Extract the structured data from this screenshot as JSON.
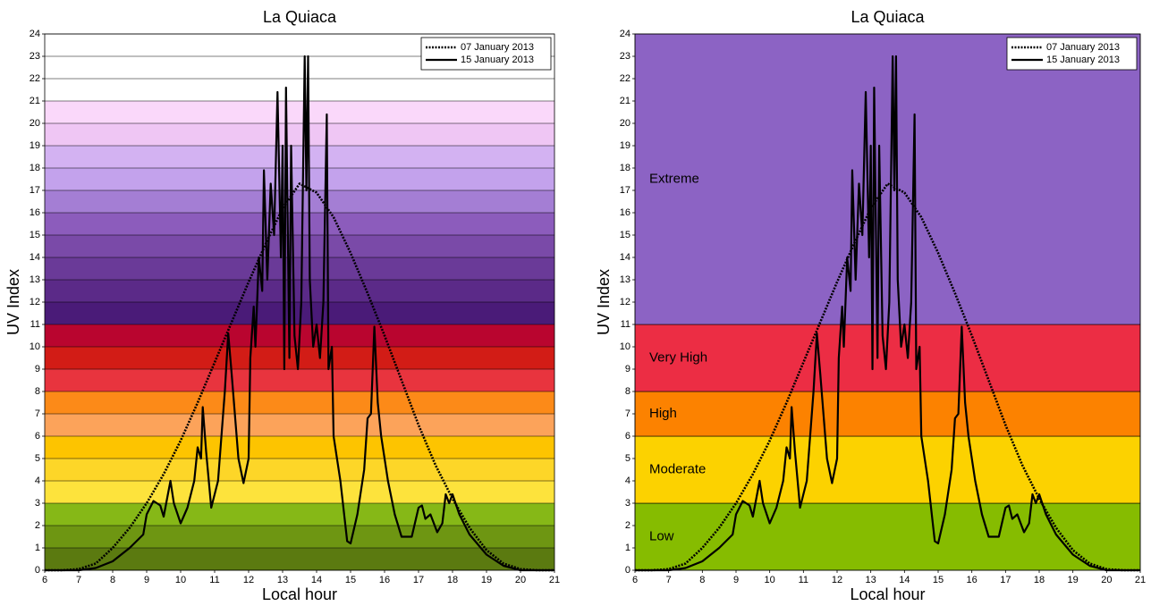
{
  "chart_data": [
    {
      "type": "line",
      "title": "La Quiaca",
      "xlabel": "Local hour",
      "ylabel": "UV Index",
      "xlim": [
        6,
        21
      ],
      "ylim": [
        0,
        24
      ],
      "xticks": [
        6,
        7,
        8,
        9,
        10,
        11,
        12,
        13,
        14,
        15,
        16,
        17,
        18,
        19,
        20,
        21
      ],
      "yticks": [
        0,
        1,
        2,
        3,
        4,
        5,
        6,
        7,
        8,
        9,
        10,
        11,
        12,
        13,
        14,
        15,
        16,
        17,
        18,
        19,
        20,
        21,
        22,
        23,
        24
      ],
      "grid": true,
      "legend": "top-right",
      "bands": [
        {
          "from": 0,
          "to": 1,
          "color": "#5b7a10"
        },
        {
          "from": 1,
          "to": 2,
          "color": "#6e9612"
        },
        {
          "from": 2,
          "to": 3,
          "color": "#86b817"
        },
        {
          "from": 3,
          "to": 4,
          "color": "#fde33c"
        },
        {
          "from": 4,
          "to": 5,
          "color": "#fdd628"
        },
        {
          "from": 5,
          "to": 6,
          "color": "#fdc400"
        },
        {
          "from": 6,
          "to": 7,
          "color": "#fca35a"
        },
        {
          "from": 7,
          "to": 8,
          "color": "#fc8a18"
        },
        {
          "from": 8,
          "to": 9,
          "color": "#e8343e"
        },
        {
          "from": 9,
          "to": 10,
          "color": "#d21c16"
        },
        {
          "from": 10,
          "to": 11,
          "color": "#b9052f"
        },
        {
          "from": 11,
          "to": 12,
          "color": "#4a1b78"
        },
        {
          "from": 12,
          "to": 13,
          "color": "#5b2a88"
        },
        {
          "from": 13,
          "to": 14,
          "color": "#6a3a98"
        },
        {
          "from": 14,
          "to": 15,
          "color": "#7a4aa8"
        },
        {
          "from": 15,
          "to": 16,
          "color": "#8c5cbc"
        },
        {
          "from": 16,
          "to": 17,
          "color": "#a47ed4"
        },
        {
          "from": 17,
          "to": 18,
          "color": "#c3a2ec"
        },
        {
          "from": 18,
          "to": 19,
          "color": "#d3b2f2"
        },
        {
          "from": 19,
          "to": 20,
          "color": "#efc6f4"
        },
        {
          "from": 20,
          "to": 21,
          "color": "#fad8fa"
        },
        {
          "from": 21,
          "to": 24,
          "color": "#ffffff"
        }
      ],
      "series": [
        {
          "name": "07 January 2013",
          "color": "#000000",
          "linestyle": "dotted",
          "x": [
            6,
            6.5,
            7,
            7.5,
            8,
            8.5,
            9,
            9.5,
            10,
            10.5,
            11,
            11.5,
            12,
            12.5,
            13,
            13.5,
            14,
            14.5,
            15,
            15.5,
            16,
            16.5,
            17,
            17.5,
            18,
            18.5,
            19,
            19.5,
            20,
            20.5,
            21
          ],
          "values": [
            0,
            0,
            0.05,
            0.3,
            1.0,
            1.9,
            3.0,
            4.3,
            5.8,
            7.5,
            9.3,
            11.1,
            12.9,
            14.6,
            16.2,
            17.3,
            16.9,
            15.8,
            14.2,
            12.4,
            10.5,
            8.5,
            6.5,
            4.7,
            3.2,
            1.9,
            0.9,
            0.3,
            0.05,
            0,
            0
          ]
        },
        {
          "name": "15 January 2013",
          "color": "#000000",
          "linestyle": "solid",
          "x": [
            6,
            7,
            7.5,
            8,
            8.5,
            8.9,
            9.0,
            9.2,
            9.4,
            9.5,
            9.7,
            9.8,
            10.0,
            10.2,
            10.4,
            10.5,
            10.6,
            10.65,
            10.75,
            10.9,
            11.1,
            11.3,
            11.4,
            11.5,
            11.7,
            11.85,
            12.0,
            12.05,
            12.15,
            12.2,
            12.3,
            12.4,
            12.45,
            12.55,
            12.65,
            12.75,
            12.85,
            12.95,
            13.0,
            13.05,
            13.1,
            13.2,
            13.25,
            13.35,
            13.45,
            13.55,
            13.65,
            13.7,
            13.75,
            13.8,
            13.9,
            14.0,
            14.1,
            14.2,
            14.3,
            14.35,
            14.45,
            14.5,
            14.7,
            14.9,
            15.0,
            15.2,
            15.4,
            15.5,
            15.6,
            15.7,
            15.8,
            15.9,
            16.1,
            16.3,
            16.5,
            16.8,
            17.0,
            17.1,
            17.2,
            17.35,
            17.55,
            17.7,
            17.8,
            17.9,
            18.0,
            18.2,
            18.5,
            19.0,
            19.5,
            20.0,
            21
          ],
          "values": [
            0,
            0,
            0.1,
            0.4,
            1.0,
            1.6,
            2.5,
            3.1,
            2.9,
            2.4,
            4.0,
            3.0,
            2.1,
            2.8,
            4.0,
            5.5,
            5.0,
            7.3,
            5.3,
            2.8,
            4.0,
            8.0,
            10.6,
            8.8,
            5.0,
            3.9,
            5.0,
            9.5,
            11.8,
            10.0,
            14.0,
            12.5,
            17.9,
            13.0,
            17.3,
            15.0,
            21.4,
            14.0,
            19.0,
            9.0,
            21.6,
            9.5,
            19.0,
            10.5,
            9.0,
            12.0,
            23.0,
            17.0,
            23.0,
            13.0,
            10.0,
            11.0,
            9.5,
            12.0,
            20.4,
            9.0,
            10.0,
            6.0,
            4.0,
            1.3,
            1.2,
            2.5,
            4.5,
            6.8,
            7.0,
            10.9,
            7.5,
            6.0,
            4.0,
            2.5,
            1.5,
            1.5,
            2.8,
            2.9,
            2.3,
            2.5,
            1.7,
            2.1,
            3.4,
            3.0,
            3.4,
            2.5,
            1.6,
            0.7,
            0.2,
            0,
            0
          ]
        }
      ]
    },
    {
      "type": "line",
      "title": "La Quiaca",
      "xlabel": "Local hour",
      "ylabel": "UV Index",
      "xlim": [
        6,
        21
      ],
      "ylim": [
        0,
        24
      ],
      "xticks": [
        6,
        7,
        8,
        9,
        10,
        11,
        12,
        13,
        14,
        15,
        16,
        17,
        18,
        19,
        20,
        21
      ],
      "yticks": [
        0,
        1,
        2,
        3,
        4,
        5,
        6,
        7,
        8,
        9,
        10,
        11,
        12,
        13,
        14,
        15,
        16,
        17,
        18,
        19,
        20,
        21,
        22,
        23,
        24
      ],
      "grid": false,
      "legend": "top-right",
      "bands": [
        {
          "from": 0,
          "to": 3,
          "color": "#86bc00",
          "label": "Low"
        },
        {
          "from": 3,
          "to": 6,
          "color": "#fcd200",
          "label": "Moderate"
        },
        {
          "from": 6,
          "to": 8,
          "color": "#fc8200",
          "label": "High"
        },
        {
          "from": 8,
          "to": 11,
          "color": "#ec2d44",
          "label": "Very High"
        },
        {
          "from": 11,
          "to": 24,
          "color": "#8c63c4",
          "label": "Extreme"
        }
      ],
      "series": [
        {
          "name": "07 January 2013",
          "color": "#000000",
          "linestyle": "dotted",
          "x": [
            6,
            6.5,
            7,
            7.5,
            8,
            8.5,
            9,
            9.5,
            10,
            10.5,
            11,
            11.5,
            12,
            12.5,
            13,
            13.5,
            14,
            14.5,
            15,
            15.5,
            16,
            16.5,
            17,
            17.5,
            18,
            18.5,
            19,
            19.5,
            20,
            20.5,
            21
          ],
          "values": [
            0,
            0,
            0.05,
            0.3,
            1.0,
            1.9,
            3.0,
            4.3,
            5.8,
            7.5,
            9.3,
            11.1,
            12.9,
            14.6,
            16.2,
            17.3,
            16.9,
            15.8,
            14.2,
            12.4,
            10.5,
            8.5,
            6.5,
            4.7,
            3.2,
            1.9,
            0.9,
            0.3,
            0.05,
            0,
            0
          ]
        },
        {
          "name": "15 January 2013",
          "color": "#000000",
          "linestyle": "solid",
          "x": [
            6,
            7,
            7.5,
            8,
            8.5,
            8.9,
            9.0,
            9.2,
            9.4,
            9.5,
            9.7,
            9.8,
            10.0,
            10.2,
            10.4,
            10.5,
            10.6,
            10.65,
            10.75,
            10.9,
            11.1,
            11.3,
            11.4,
            11.5,
            11.7,
            11.85,
            12.0,
            12.05,
            12.15,
            12.2,
            12.3,
            12.4,
            12.45,
            12.55,
            12.65,
            12.75,
            12.85,
            12.95,
            13.0,
            13.05,
            13.1,
            13.2,
            13.25,
            13.35,
            13.45,
            13.55,
            13.65,
            13.7,
            13.75,
            13.8,
            13.9,
            14.0,
            14.1,
            14.2,
            14.3,
            14.35,
            14.45,
            14.5,
            14.7,
            14.9,
            15.0,
            15.2,
            15.4,
            15.5,
            15.6,
            15.7,
            15.8,
            15.9,
            16.1,
            16.3,
            16.5,
            16.8,
            17.0,
            17.1,
            17.2,
            17.35,
            17.55,
            17.7,
            17.8,
            17.9,
            18.0,
            18.2,
            18.5,
            19.0,
            19.5,
            20.0,
            21
          ],
          "values": [
            0,
            0,
            0.1,
            0.4,
            1.0,
            1.6,
            2.5,
            3.1,
            2.9,
            2.4,
            4.0,
            3.0,
            2.1,
            2.8,
            4.0,
            5.5,
            5.0,
            7.3,
            5.3,
            2.8,
            4.0,
            8.0,
            10.6,
            8.8,
            5.0,
            3.9,
            5.0,
            9.5,
            11.8,
            10.0,
            14.0,
            12.5,
            17.9,
            13.0,
            17.3,
            15.0,
            21.4,
            14.0,
            19.0,
            9.0,
            21.6,
            9.5,
            19.0,
            10.5,
            9.0,
            12.0,
            23.0,
            17.0,
            23.0,
            13.0,
            10.0,
            11.0,
            9.5,
            12.0,
            20.4,
            9.0,
            10.0,
            6.0,
            4.0,
            1.3,
            1.2,
            2.5,
            4.5,
            6.8,
            7.0,
            10.9,
            7.5,
            6.0,
            4.0,
            2.5,
            1.5,
            1.5,
            2.8,
            2.9,
            2.3,
            2.5,
            1.7,
            2.1,
            3.4,
            3.0,
            3.4,
            2.5,
            1.6,
            0.7,
            0.2,
            0,
            0
          ]
        }
      ]
    }
  ]
}
